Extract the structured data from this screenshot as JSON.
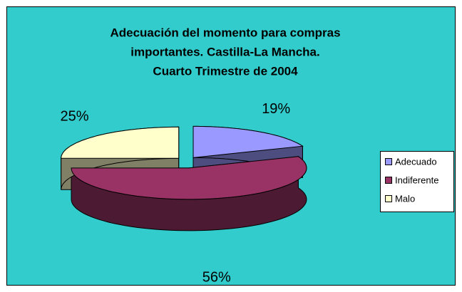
{
  "chart_data": {
    "type": "pie3d",
    "title": [
      "Adecuación del momento para compras",
      "importantes. Castilla-La Mancha.",
      "Cuarto Trimestre de 2004"
    ],
    "categories": [
      "Adecuado",
      "Indiferente",
      "Malo"
    ],
    "values": [
      19,
      56,
      25
    ],
    "value_labels": [
      "19%",
      "56%",
      "25%"
    ],
    "colors": [
      "#9999ff",
      "#993366",
      "#ffffcc"
    ],
    "legend": "right"
  }
}
